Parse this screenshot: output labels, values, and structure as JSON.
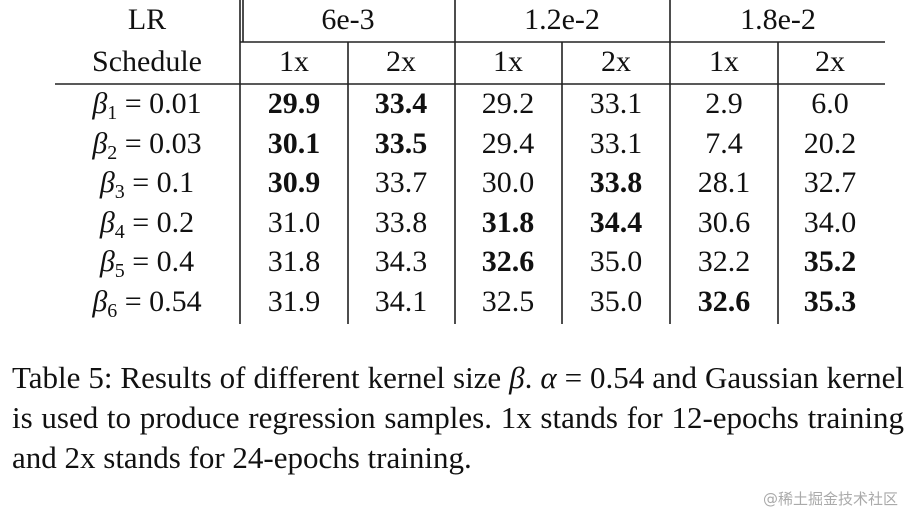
{
  "table": {
    "header": {
      "group_label": "LR",
      "groups": [
        "6e-3",
        "1.2e-2",
        "1.8e-2"
      ],
      "sub_label": "Schedule",
      "subs": [
        "1x",
        "2x",
        "1x",
        "2x",
        "1x",
        "2x"
      ]
    },
    "rows": [
      {
        "symbol": "β",
        "sub": "1",
        "rest": "= 0.01",
        "values": [
          "29.9",
          "33.4",
          "29.2",
          "33.1",
          "2.9",
          "6.0"
        ],
        "bold": [
          true,
          true,
          false,
          false,
          false,
          false
        ]
      },
      {
        "symbol": "β",
        "sub": "2",
        "rest": "= 0.03",
        "values": [
          "30.1",
          "33.5",
          "29.4",
          "33.1",
          "7.4",
          "20.2"
        ],
        "bold": [
          true,
          true,
          false,
          false,
          false,
          false
        ]
      },
      {
        "symbol": "β",
        "sub": "3",
        "rest": "= 0.1",
        "values": [
          "30.9",
          "33.7",
          "30.0",
          "33.8",
          "28.1",
          "32.7"
        ],
        "bold": [
          true,
          false,
          false,
          true,
          false,
          false
        ]
      },
      {
        "symbol": "β",
        "sub": "4",
        "rest": "= 0.2",
        "values": [
          "31.0",
          "33.8",
          "31.8",
          "34.4",
          "30.6",
          "34.0"
        ],
        "bold": [
          false,
          false,
          true,
          true,
          false,
          false
        ]
      },
      {
        "symbol": "β",
        "sub": "5",
        "rest": "= 0.4",
        "values": [
          "31.8",
          "34.3",
          "32.6",
          "35.0",
          "32.2",
          "35.2"
        ],
        "bold": [
          false,
          false,
          true,
          false,
          false,
          true
        ]
      },
      {
        "symbol": "β",
        "sub": "6",
        "rest": "= 0.54",
        "values": [
          "31.9",
          "34.1",
          "32.5",
          "35.0",
          "32.6",
          "35.3"
        ],
        "bold": [
          false,
          false,
          false,
          false,
          true,
          true
        ]
      }
    ]
  },
  "caption": {
    "parts": [
      {
        "text": "Table 5: Results of different kernel size ",
        "italic": false
      },
      {
        "text": "β",
        "italic": true
      },
      {
        "text": ". ",
        "italic": false
      },
      {
        "text": "α",
        "italic": true
      },
      {
        "text": " = 0.54 and Gaussian kernel is used to produce regression samples. 1x stands for 12-epochs training and 2x stands for 24-epochs training.",
        "italic": false
      }
    ]
  },
  "watermark": "@稀土掘金技术社区"
}
